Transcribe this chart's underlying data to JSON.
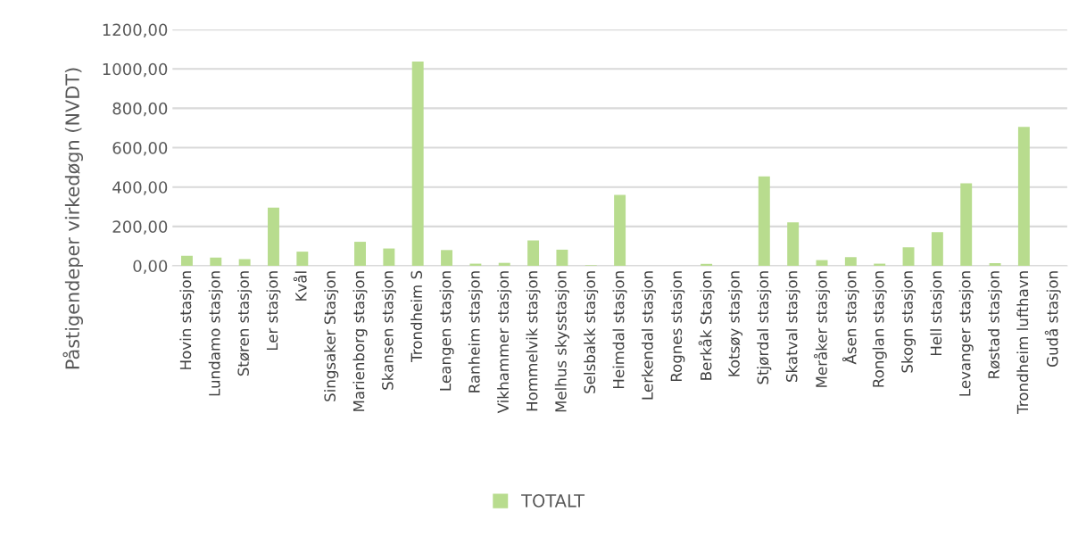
{
  "chart_data": {
    "type": "bar",
    "ylabel": "Påstigendeper virkedøgn (NVDT)",
    "categories": [
      "Hovin stasjon",
      "Lundamo stasjon",
      "Støren stasjon",
      "Ler stasjon",
      "Kvål",
      "Singsaker Stasjon",
      "Marienborg stasjon",
      "Skansen stasjon",
      "Trondheim S",
      "Leangen stasjon",
      "Ranheim stasjon",
      "Vikhammer stasjon",
      "Hommelvik stasjon",
      "Melhus skysstasjon",
      "Selsbakk stasjon",
      "Heimdal stasjon",
      "Lerkendal stasjon",
      "Rognes stasjon",
      "Berkåk Stasjon",
      "Kotsøy stasjon",
      "Stjørdal stasjon",
      "Skatval stasjon",
      "Meråker stasjon",
      "Åsen stasjon",
      "Ronglan stasjon",
      "Skogn stasjon",
      "Hell stasjon",
      "Levanger stasjon",
      "Røstad stasjon",
      "Trondheim lufthavn",
      "Gudå stasjon"
    ],
    "series": [
      {
        "name": "TOTALT",
        "color": "#b8dc8e",
        "values": [
          51,
          42,
          34,
          295,
          72,
          null,
          122,
          88,
          1037,
          80,
          11,
          15,
          129,
          82,
          3,
          360,
          null,
          null,
          10,
          null,
          454,
          221,
          29,
          44,
          11,
          94,
          171,
          419,
          14,
          706,
          null
        ]
      }
    ],
    "ylim": [
      0,
      1200
    ],
    "yticks": [
      {
        "value": 0,
        "label": "0,00"
      },
      {
        "value": 200,
        "label": "200,00"
      },
      {
        "value": 400,
        "label": "400,00"
      },
      {
        "value": 600,
        "label": "600,00"
      },
      {
        "value": 800,
        "label": "800,00"
      },
      {
        "value": 1000,
        "label": "1000,00"
      },
      {
        "value": 1200,
        "label": "1200,00"
      }
    ],
    "grid": "y",
    "legend": "bottom"
  }
}
